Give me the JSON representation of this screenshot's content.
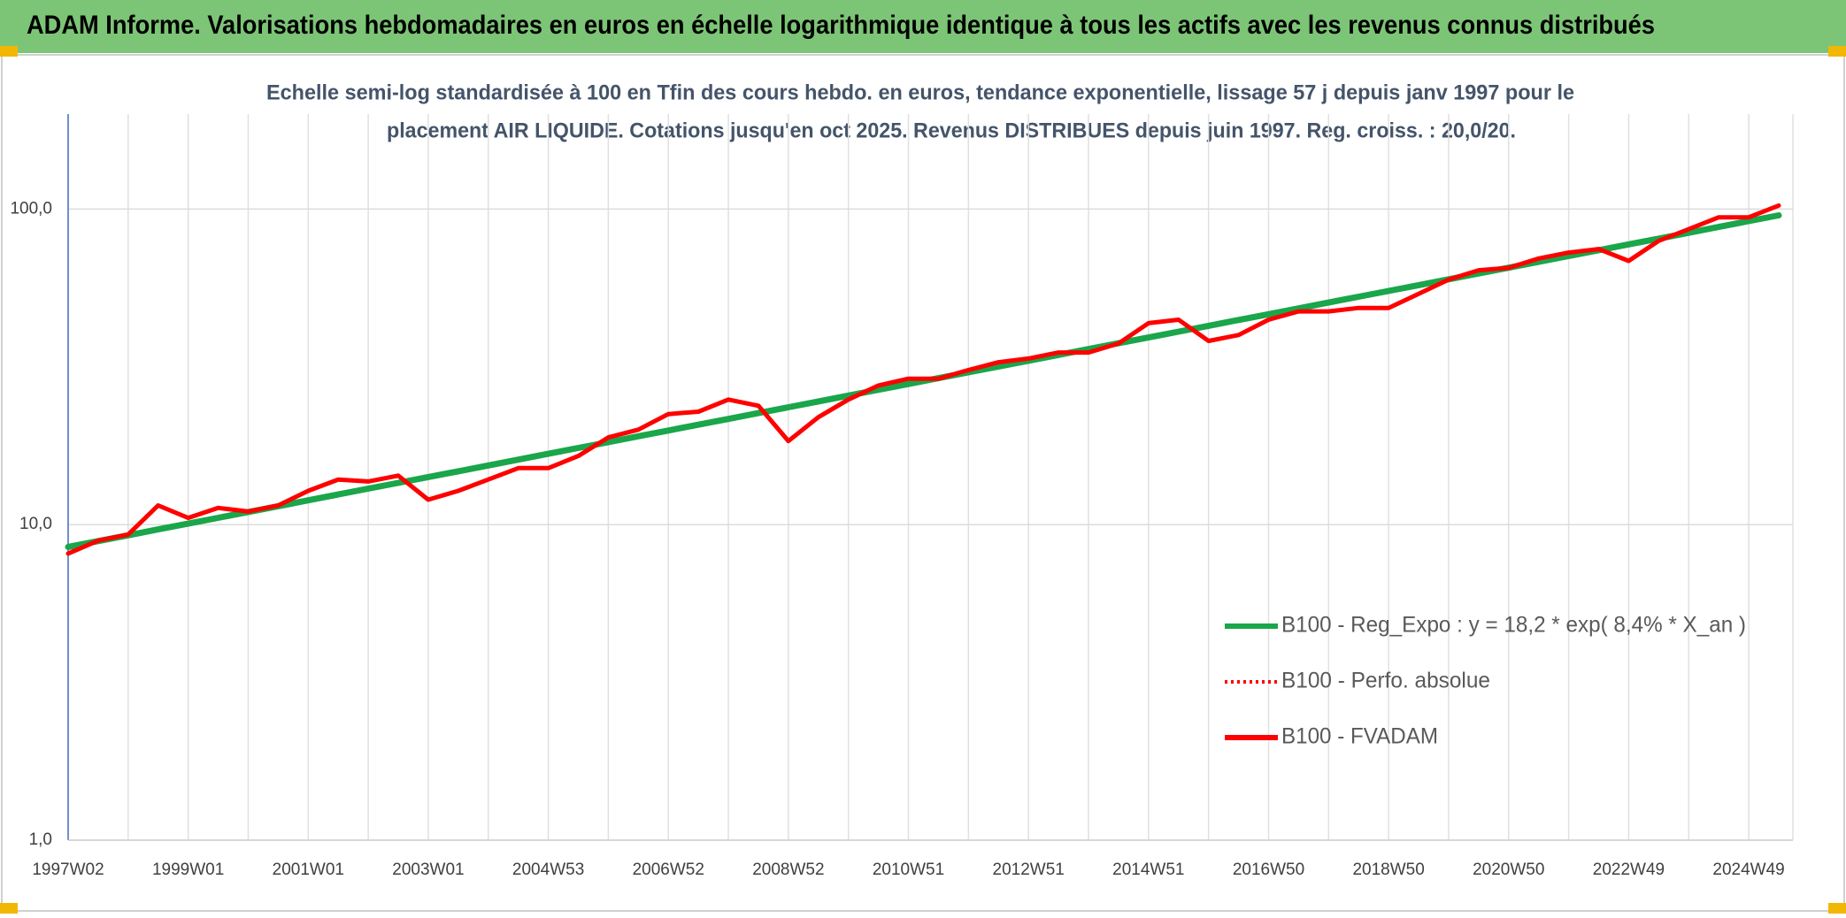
{
  "chart_data": {
    "type": "line",
    "title": "ADAM Informe. Valorisations hebdomadaires en euros en échelle logarithmique identique à tous les actifs avec les revenus connus distribués",
    "subtitle": [
      "Echelle semi-log standardisée à 100 en Tfin des cours hebdo. en euros, tendance exponentielle, lissage 57 j depuis janv 1997 pour le",
      "placement AIR LIQUIDE. Cotations jusqu'en oct 2025. Revenus DISTRIBUES depuis juin 1997. Reg. croiss. : 20,0/20."
    ],
    "categories": [
      "1997W02",
      null,
      null,
      null,
      "1999W01",
      null,
      null,
      null,
      "2001W01",
      null,
      null,
      null,
      "2003W01",
      null,
      null,
      null,
      "2004W53",
      null,
      null,
      null,
      "2006W52",
      null,
      null,
      null,
      "2008W52",
      null,
      null,
      null,
      "2010W51",
      null,
      null,
      null,
      "2012W51",
      null,
      null,
      null,
      "2014W51",
      null,
      null,
      null,
      "2016W50",
      null,
      null,
      null,
      "2018W50",
      null,
      null,
      null,
      "2020W50",
      null,
      null,
      null,
      "2022W49",
      null,
      null,
      null,
      "2024W49",
      null
    ],
    "log_scale": true,
    "ylim": [
      1,
      200
    ],
    "yticks": [
      {
        "value": 1,
        "label": "1,0"
      },
      {
        "value": 10,
        "label": "10,0"
      },
      {
        "value": 100,
        "label": "100,0"
      }
    ],
    "grid": true,
    "legend": "right",
    "series": [
      {
        "name": "B100 - Reg_Expo : y = 18,2 * exp( 8,4% *  X_an )",
        "color": "#1aa64a",
        "style": "solid",
        "values": [
          8.5,
          8.87,
          9.25,
          9.66,
          10.07,
          10.51,
          10.97,
          11.44,
          11.94,
          12.46,
          13.0,
          13.56,
          14.15,
          14.76,
          15.4,
          16.07,
          16.77,
          17.5,
          18.25,
          19.05,
          19.87,
          20.73,
          21.63,
          22.57,
          23.55,
          24.57,
          25.64,
          26.75,
          27.91,
          29.12,
          30.38,
          31.7,
          33.07,
          34.5,
          36.0,
          37.56,
          39.19,
          40.89,
          42.66,
          44.51,
          46.44,
          48.45,
          50.55,
          52.75,
          55.03,
          57.42,
          59.91,
          62.5,
          65.21,
          68.04,
          70.99,
          74.07,
          77.28,
          80.63,
          84.13,
          87.77,
          91.58,
          95.55
        ]
      },
      {
        "name": "B100 - Perfo. absolue",
        "color": "#ff0000",
        "style": "dotted",
        "values": [
          8.1,
          8.9,
          9.3,
          11.5,
          10.5,
          11.3,
          11.0,
          11.5,
          12.8,
          13.9,
          13.7,
          14.3,
          12.0,
          12.8,
          13.9,
          15.1,
          15.1,
          16.5,
          18.9,
          20.0,
          22.4,
          22.8,
          24.9,
          23.8,
          18.4,
          21.9,
          24.9,
          27.6,
          29.0,
          29.0,
          30.9,
          32.7,
          33.6,
          35.1,
          35.1,
          37.5,
          43.5,
          44.6,
          38.2,
          39.9,
          44.6,
          47.4,
          47.4,
          48.6,
          48.6,
          53.9,
          59.8,
          64.0,
          65.1,
          69.7,
          72.8,
          74.7,
          68.5,
          79.3,
          86.4,
          94.2,
          94.2,
          102.6
        ]
      },
      {
        "name": "B100 - FVADAM",
        "color": "#ff0000",
        "style": "solid",
        "values": [
          8.1,
          8.9,
          9.3,
          11.5,
          10.5,
          11.3,
          11.0,
          11.5,
          12.8,
          13.9,
          13.7,
          14.3,
          12.0,
          12.8,
          13.9,
          15.1,
          15.1,
          16.5,
          18.9,
          20.0,
          22.4,
          22.8,
          24.9,
          23.8,
          18.4,
          21.9,
          24.9,
          27.6,
          29.0,
          29.0,
          30.9,
          32.7,
          33.6,
          35.1,
          35.1,
          37.5,
          43.5,
          44.6,
          38.2,
          39.9,
          44.6,
          47.4,
          47.4,
          48.6,
          48.6,
          53.9,
          59.8,
          64.0,
          65.1,
          69.7,
          72.8,
          74.7,
          68.5,
          79.3,
          86.4,
          94.2,
          94.2,
          102.6
        ]
      }
    ]
  }
}
